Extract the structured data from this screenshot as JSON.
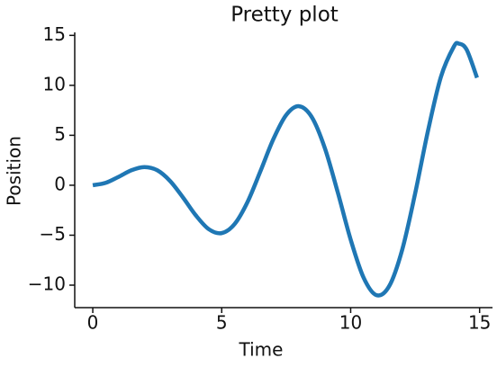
{
  "chart_data": {
    "type": "line",
    "title": "Pretty plot",
    "x_label": "Time",
    "y_label": "Position",
    "x": [
      0,
      0.5,
      1,
      1.5,
      2,
      2.5,
      3,
      3.5,
      4,
      4.5,
      5,
      5.5,
      6,
      6.5,
      7,
      7.5,
      8,
      8.5,
      9,
      9.5,
      10,
      10.5,
      11,
      11.5,
      12,
      12.5,
      13,
      13.5,
      14,
      14.2,
      14.5,
      14.9
    ],
    "series": [
      {
        "color": "#1f77b4",
        "values": [
          0,
          0.24,
          0.84,
          1.5,
          1.82,
          1.5,
          0.42,
          -1.23,
          -3.03,
          -4.4,
          -4.79,
          -3.88,
          -1.68,
          1.4,
          4.6,
          7.03,
          7.91,
          6.79,
          3.71,
          -0.71,
          -5.44,
          -9.24,
          -11.0,
          -10.07,
          -6.44,
          -0.83,
          5.46,
          10.85,
          13.87,
          14.17,
          13.56,
          10.76
        ]
      }
    ],
    "xlim": [
      -0.7,
      15.5
    ],
    "ylim": [
      -12.25,
      15.3
    ],
    "xticks": [
      0,
      5,
      10,
      15
    ],
    "yticks": [
      {
        "value": -10,
        "label": "−10"
      },
      {
        "value": -5,
        "label": "−5"
      },
      0,
      5,
      10,
      15
    ],
    "grid": false
  }
}
